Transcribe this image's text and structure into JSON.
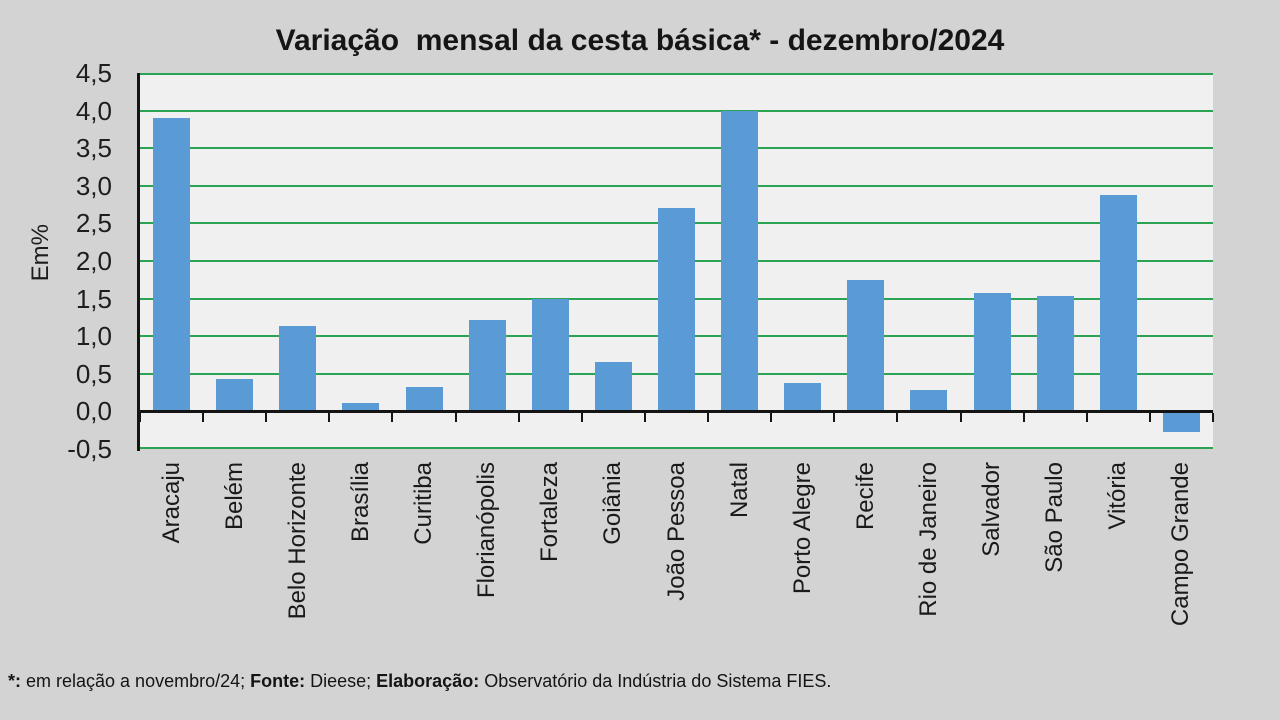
{
  "slide": {
    "background": "#d3d3d3"
  },
  "chart_data": {
    "type": "bar",
    "title": "Variação  mensal da cesta básica* - dezembro/2024",
    "ylabel": "Em%",
    "xlabel": "",
    "ylim": [
      -0.5,
      4.5
    ],
    "ytick_step": 0.5,
    "ytick_labels": [
      "4,5",
      "4,0",
      "3,5",
      "3,0",
      "2,5",
      "2,0",
      "1,5",
      "1,0",
      "0,5",
      "0,0",
      "-0,5"
    ],
    "categories": [
      "Aracaju",
      "Belém",
      "Belo Horizonte",
      "Brasília",
      "Curitiba",
      "Florianópolis",
      "Fortaleza",
      "Goiânia",
      "João Pessoa",
      "Natal",
      "Porto Alegre",
      "Recife",
      "Rio de Janeiro",
      "Salvador",
      "São Paulo",
      "Vitória",
      "Campo Grande"
    ],
    "values": [
      3.9,
      0.43,
      1.13,
      0.11,
      0.32,
      1.21,
      1.5,
      0.66,
      2.7,
      4.0,
      0.38,
      1.75,
      0.28,
      1.57,
      1.54,
      2.88,
      -0.28
    ],
    "grid": true,
    "legend": false,
    "bar_color": "#5b9bd5",
    "gridline_color": "#2aa352",
    "plot_bg": "#f0f0f0",
    "axis_color": "#141414"
  },
  "footnote": {
    "segments": [
      {
        "text": "*:",
        "bold": true
      },
      {
        "text": " em relação a novembro/24; ",
        "bold": false
      },
      {
        "text": "Fonte:",
        "bold": true
      },
      {
        "text": " Dieese; ",
        "bold": false
      },
      {
        "text": "Elaboração:",
        "bold": true
      },
      {
        "text": " Observatório da Indústria do Sistema FIES.",
        "bold": false
      }
    ]
  }
}
